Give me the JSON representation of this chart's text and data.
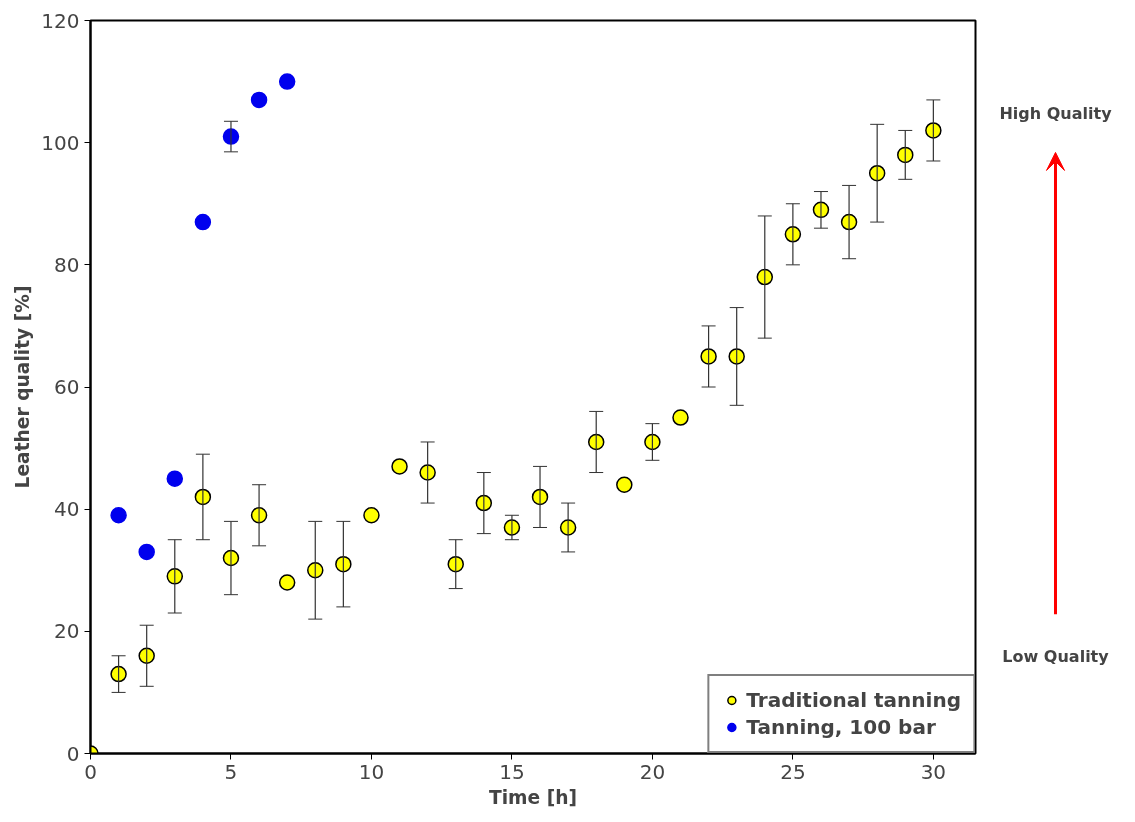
{
  "chart_data": {
    "type": "scatter",
    "xlabel": "Time [h]",
    "ylabel": "Leather quality [%]",
    "xlim": [
      0,
      31.5
    ],
    "ylim": [
      0,
      120
    ],
    "xticks": [
      0,
      5,
      10,
      15,
      20,
      25,
      30
    ],
    "yticks": [
      0,
      20,
      40,
      60,
      80,
      100,
      120
    ],
    "grid": false,
    "legend": "bottom right",
    "marker": "circle",
    "annotations": [
      "High Quality",
      "Low Quality"
    ],
    "series": [
      {
        "name": "Traditional tanning",
        "color": "#ffff00",
        "x": [
          0,
          1,
          2,
          3,
          4,
          5,
          6,
          7,
          8,
          9,
          10,
          11,
          12,
          13,
          14,
          15,
          16,
          17,
          18,
          19,
          20,
          21,
          22,
          23,
          24,
          25,
          26,
          27,
          28,
          29,
          30
        ],
        "values": [
          0,
          13,
          16,
          29,
          42,
          32,
          39,
          28,
          30,
          31,
          39,
          47,
          46,
          31,
          41,
          37,
          42,
          37,
          51,
          44,
          51,
          55,
          65,
          65,
          78,
          85,
          89,
          87,
          95,
          98,
          102
        ],
        "errors": [
          null,
          [
            10,
            16
          ],
          [
            11,
            21
          ],
          [
            23,
            35
          ],
          [
            35,
            49
          ],
          [
            26,
            38
          ],
          [
            34,
            44
          ],
          null,
          [
            22,
            38
          ],
          [
            24,
            38
          ],
          null,
          null,
          [
            41,
            51
          ],
          [
            27,
            35
          ],
          [
            36,
            46
          ],
          [
            35,
            39
          ],
          [
            37,
            47
          ],
          [
            33,
            41
          ],
          [
            46,
            56
          ],
          null,
          [
            48,
            54
          ],
          null,
          [
            60,
            70
          ],
          [
            57,
            73
          ],
          [
            68,
            88
          ],
          [
            80,
            90
          ],
          [
            86,
            92
          ],
          [
            81,
            93
          ],
          [
            87,
            103
          ],
          [
            94,
            102
          ],
          [
            97,
            107
          ]
        ]
      },
      {
        "name": "Tanning, 100 bar",
        "color": "#0000ee",
        "x": [
          1,
          2,
          3,
          4,
          5,
          6,
          7
        ],
        "values": [
          39,
          33,
          45,
          87,
          101,
          107,
          110
        ],
        "errors": [
          null,
          null,
          null,
          null,
          [
            98.5,
            103.5
          ],
          null,
          null
        ]
      }
    ]
  }
}
